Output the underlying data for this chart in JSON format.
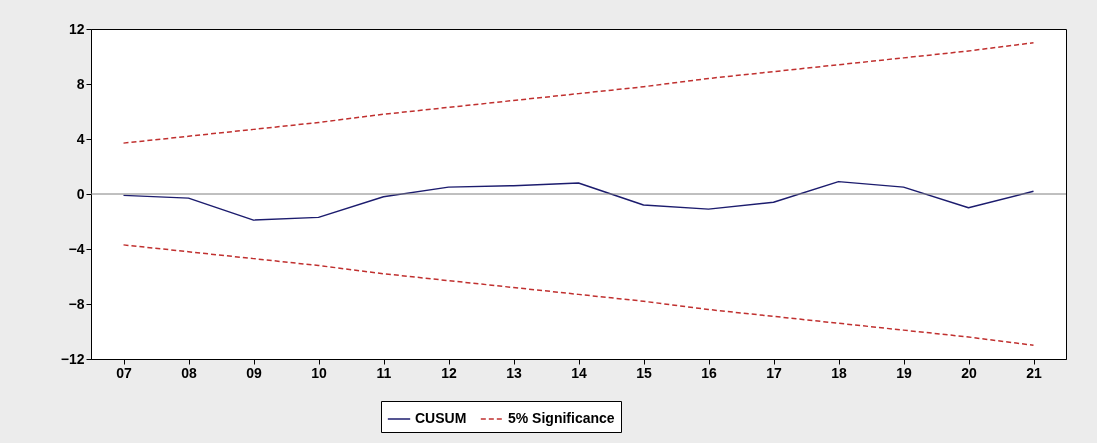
{
  "chart_data": {
    "type": "line",
    "categories": [
      "07",
      "08",
      "09",
      "10",
      "11",
      "12",
      "13",
      "14",
      "15",
      "16",
      "17",
      "18",
      "19",
      "20",
      "21"
    ],
    "series": [
      {
        "name": "CUSUM",
        "color": "#1c1c6e",
        "line_style": "solid",
        "values": [
          -0.1,
          -0.3,
          -1.9,
          -1.7,
          -0.2,
          0.5,
          0.6,
          0.8,
          -0.8,
          -1.1,
          -0.6,
          0.9,
          0.5,
          -1.0,
          0.2
        ]
      },
      {
        "name": "5% Significance",
        "color": "#c0302f",
        "line_style": "dashed",
        "values": [
          3.7,
          4.2,
          4.7,
          5.2,
          5.8,
          6.3,
          6.8,
          7.3,
          7.8,
          8.4,
          8.9,
          9.4,
          9.9,
          10.4,
          11.0
        ]
      },
      {
        "color": "#c0302f",
        "line_style": "dashed",
        "values": [
          -3.7,
          -4.2,
          -4.7,
          -5.2,
          -5.8,
          -6.3,
          -6.8,
          -7.3,
          -7.8,
          -8.4,
          -8.9,
          -9.4,
          -9.9,
          -10.4,
          -11.0
        ]
      }
    ],
    "ylim": [
      -12,
      12
    ],
    "yticks": [
      -12,
      -8,
      -4,
      0,
      4,
      8,
      12
    ],
    "grid": false,
    "legend": "bottom",
    "marker": "none",
    "ref_lines": [
      {
        "axis": "y",
        "value": 0,
        "color": "#808080"
      }
    ]
  }
}
